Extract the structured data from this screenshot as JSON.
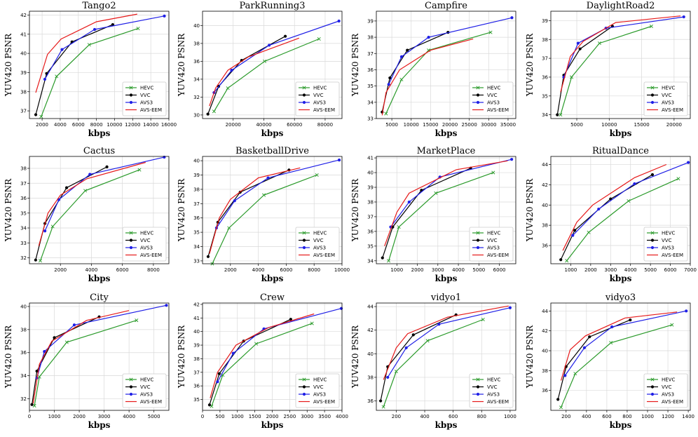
{
  "colors": {
    "HEVC": "#2a9a2a",
    "VVC": "#000000",
    "AVS3": "#1f1fe6",
    "AVS-EEM": "#e61919"
  },
  "legend_names": [
    "HEVC",
    "VVC",
    "AVS3",
    "AVS-EEM"
  ],
  "chart_data": [
    {
      "type": "line",
      "title": "Tango2",
      "xlabel": "kbps",
      "ylabel": "YUV420 PSNR",
      "xlim": [
        600,
        16000
      ],
      "ylim": [
        36.6,
        42.2
      ],
      "xticks": [
        2000,
        4000,
        6000,
        8000,
        10000,
        12000,
        14000,
        16000
      ],
      "yticks": [
        37,
        38,
        39,
        40,
        41,
        42
      ],
      "series": [
        {
          "name": "HEVC",
          "x": [
            1900,
            3600,
            7200,
            12600
          ],
          "y": [
            36.7,
            38.8,
            40.45,
            41.3
          ]
        },
        {
          "name": "VVC",
          "x": [
            1300,
            2500,
            5300,
            9800
          ],
          "y": [
            36.8,
            38.95,
            40.6,
            41.5
          ]
        },
        {
          "name": "AVS3",
          "x": [
            2300,
            4200,
            7800,
            15500
          ],
          "y": [
            38.65,
            40.2,
            41.25,
            41.95
          ]
        },
        {
          "name": "AVS-EEM",
          "x": [
            1300,
            2600,
            4100,
            8000,
            12500
          ],
          "y": [
            37.95,
            39.95,
            40.75,
            41.65,
            42.05
          ]
        }
      ]
    },
    {
      "type": "line",
      "title": "ParkRunning3",
      "xlabel": "kbps",
      "ylabel": "YUV420 PSNR",
      "xlim": [
        0,
        91000
      ],
      "ylim": [
        29.6,
        41.6
      ],
      "xticks": [
        20000,
        40000,
        60000,
        80000
      ],
      "yticks": [
        30,
        32,
        34,
        36,
        38,
        40
      ],
      "series": [
        {
          "name": "HEVC",
          "x": [
            7500,
            16500,
            40500,
            76000
          ],
          "y": [
            30.4,
            33,
            36,
            38.5
          ]
        },
        {
          "name": "VVC",
          "x": [
            3500,
            10500,
            25500,
            54000
          ],
          "y": [
            30.1,
            33.2,
            36.1,
            38.8
          ]
        },
        {
          "name": "AVS3",
          "x": [
            7500,
            19000,
            43500,
            89000
          ],
          "y": [
            32.5,
            35,
            37.8,
            40.5
          ]
        },
        {
          "name": "AVS-EEM",
          "x": [
            4500,
            8500,
            16500,
            30000,
            63000
          ],
          "y": [
            31,
            33,
            35,
            36.5,
            38.6
          ]
        }
      ]
    },
    {
      "type": "line",
      "title": "Campfire",
      "xlabel": "kbps",
      "ylabel": "YUV420 PSNR",
      "xlim": [
        1000,
        37000
      ],
      "ylim": [
        33.0,
        39.6
      ],
      "xticks": [
        5000,
        10000,
        15000,
        20000,
        25000,
        30000,
        35000
      ],
      "yticks": [
        33,
        34,
        35,
        36,
        37,
        38,
        39
      ],
      "series": [
        {
          "name": "HEVC",
          "x": [
            3500,
            7500,
            14500,
            30500
          ],
          "y": [
            33.3,
            35.4,
            37.2,
            38.3
          ]
        },
        {
          "name": "VVC",
          "x": [
            2500,
            4500,
            9000,
            19500
          ],
          "y": [
            33.4,
            35.5,
            37.2,
            38.3
          ]
        },
        {
          "name": "AVS3",
          "x": [
            4200,
            7500,
            14500,
            36000
          ],
          "y": [
            35.1,
            36.8,
            38.0,
            39.2
          ]
        },
        {
          "name": "AVS-EEM",
          "x": [
            2500,
            3500,
            7000,
            15000,
            26000
          ],
          "y": [
            33.2,
            34.6,
            36.0,
            37.2,
            37.9
          ]
        }
      ]
    },
    {
      "type": "line",
      "title": "DaylightRoad2",
      "xlabel": "kbps",
      "ylabel": "YUV420 PSNR",
      "xlim": [
        1000,
        22500
      ],
      "ylim": [
        33.8,
        39.5
      ],
      "xticks": [
        5000,
        10000,
        15000,
        20000
      ],
      "yticks": [
        34,
        35,
        36,
        37,
        38,
        39
      ],
      "series": [
        {
          "name": "HEVC",
          "x": [
            2500,
            4200,
            8500,
            16500
          ],
          "y": [
            34.0,
            36.0,
            37.8,
            38.7
          ]
        },
        {
          "name": "VVC",
          "x": [
            2000,
            3000,
            5500,
            10500
          ],
          "y": [
            34.0,
            36.1,
            37.5,
            38.7
          ]
        },
        {
          "name": "AVS3",
          "x": [
            3000,
            5200,
            9500,
            21500
          ],
          "y": [
            36.0,
            37.8,
            38.6,
            39.2
          ]
        },
        {
          "name": "AVS-EEM",
          "x": [
            2500,
            4000,
            6000,
            11000,
            21000
          ],
          "y": [
            35.2,
            37.1,
            37.9,
            38.9,
            39.25
          ]
        }
      ]
    },
    {
      "type": "line",
      "title": "Cactus",
      "xlabel": "kbps",
      "ylabel": "YUV420 PSNR",
      "xlim": [
        0,
        9000
      ],
      "ylim": [
        31.6,
        38.8
      ],
      "xticks": [
        2000,
        4000,
        6000,
        8000
      ],
      "yticks": [
        32,
        33,
        34,
        35,
        36,
        37,
        38
      ],
      "series": [
        {
          "name": "HEVC",
          "x": [
            700,
            1500,
            3600,
            7100
          ],
          "y": [
            31.8,
            34.1,
            36.5,
            37.9
          ]
        },
        {
          "name": "VVC",
          "x": [
            400,
            1000,
            2400,
            5000
          ],
          "y": [
            31.85,
            34.3,
            36.7,
            38.1
          ]
        },
        {
          "name": "AVS3",
          "x": [
            1000,
            1900,
            3900,
            8700
          ],
          "y": [
            33.8,
            35.9,
            37.6,
            38.75
          ]
        },
        {
          "name": "AVS-EEM",
          "x": [
            600,
            1200,
            2000,
            3700,
            7500
          ],
          "y": [
            32.8,
            35,
            36.2,
            37.3,
            38.4
          ]
        }
      ]
    },
    {
      "type": "line",
      "title": "BasketballDrive",
      "xlabel": "kbps",
      "ylabel": "YUV420 PSNR",
      "xlim": [
        0,
        10000
      ],
      "ylim": [
        32.8,
        40.3
      ],
      "xticks": [
        2000,
        4000,
        6000,
        8000,
        10000
      ],
      "yticks": [
        33,
        34,
        35,
        36,
        37,
        38,
        39,
        40
      ],
      "series": [
        {
          "name": "HEVC",
          "x": [
            700,
            1900,
            4400,
            8200
          ],
          "y": [
            32.8,
            35.3,
            37.6,
            39.0
          ]
        },
        {
          "name": "VVC",
          "x": [
            400,
            1100,
            2700,
            6200
          ],
          "y": [
            33.3,
            35.7,
            37.8,
            39.35
          ]
        },
        {
          "name": "AVS3",
          "x": [
            1000,
            2300,
            4700,
            9800
          ],
          "y": [
            35.3,
            37.2,
            38.8,
            40.05
          ]
        },
        {
          "name": "AVS-EEM",
          "x": [
            500,
            1200,
            2000,
            4000,
            7000
          ],
          "y": [
            33.5,
            36,
            37.3,
            38.8,
            39.5
          ]
        }
      ]
    },
    {
      "type": "line",
      "title": "MarketPlace",
      "xlabel": "kbps",
      "ylabel": "YUV420 PSNR",
      "xlim": [
        0,
        6800
      ],
      "ylim": [
        33.8,
        41.1
      ],
      "xticks": [
        1000,
        2000,
        3000,
        4000,
        5000,
        6000
      ],
      "yticks": [
        34,
        35,
        36,
        37,
        38,
        39,
        40,
        41
      ],
      "series": [
        {
          "name": "HEVC",
          "x": [
            600,
            1100,
            2900,
            5700
          ],
          "y": [
            34.0,
            36.3,
            38.6,
            40.0
          ]
        },
        {
          "name": "VVC",
          "x": [
            300,
            800,
            2200,
            4600
          ],
          "y": [
            34.2,
            36.3,
            38.8,
            40.3
          ]
        },
        {
          "name": "AVS3",
          "x": [
            700,
            1600,
            3100,
            6600
          ],
          "y": [
            36.3,
            38.0,
            39.7,
            40.9
          ]
        },
        {
          "name": "AVS-EEM",
          "x": [
            400,
            1000,
            1600,
            3900,
            6400
          ],
          "y": [
            35.0,
            37.3,
            38.6,
            40.2,
            40.8
          ]
        }
      ]
    },
    {
      "type": "line",
      "title": "RitualDance",
      "xlabel": "kbps",
      "ylabel": "YUV420 PSNR",
      "xlim": [
        0,
        7000
      ],
      "ylim": [
        34.2,
        44.8
      ],
      "xticks": [
        1000,
        2000,
        3000,
        4000,
        5000,
        6000,
        7000
      ],
      "yticks": [
        36,
        38,
        40,
        42,
        44
      ],
      "series": [
        {
          "name": "HEVC",
          "x": [
            800,
            1900,
            3900,
            6400
          ],
          "y": [
            34.5,
            37.3,
            40.4,
            42.6
          ]
        },
        {
          "name": "VVC",
          "x": [
            500,
            1200,
            3000,
            5100
          ],
          "y": [
            34.6,
            37.5,
            40.6,
            43.0
          ]
        },
        {
          "name": "AVS3",
          "x": [
            1100,
            2400,
            4200,
            6900
          ],
          "y": [
            37.0,
            39.6,
            42.1,
            44.2
          ]
        },
        {
          "name": "AVS-EEM",
          "x": [
            600,
            1300,
            2100,
            4200,
            5800
          ],
          "y": [
            35.5,
            38.3,
            40.0,
            42.7,
            44.0
          ]
        }
      ]
    },
    {
      "type": "line",
      "title": "City",
      "xlabel": "kbps",
      "ylabel": "YUV420 PSNR",
      "xlim": [
        0,
        5600
      ],
      "ylim": [
        31.0,
        40.3
      ],
      "xticks": [
        0,
        1000,
        2000,
        3000,
        4000,
        5000
      ],
      "yticks": [
        32,
        34,
        36,
        38,
        40
      ],
      "series": [
        {
          "name": "HEVC",
          "x": [
            200,
            400,
            1500,
            4300
          ],
          "y": [
            31.4,
            33.9,
            36.9,
            38.8
          ]
        },
        {
          "name": "VVC",
          "x": [
            100,
            300,
            1000,
            2800
          ],
          "y": [
            31.5,
            34.4,
            37.3,
            39.1
          ]
        },
        {
          "name": "AVS3",
          "x": [
            300,
            600,
            1800,
            5500
          ],
          "y": [
            33.8,
            36.1,
            38.4,
            40.1
          ]
        },
        {
          "name": "AVS-EEM",
          "x": [
            150,
            400,
            900,
            2300,
            4000
          ],
          "y": [
            31.6,
            35.0,
            37.0,
            38.8,
            39.65
          ]
        }
      ]
    },
    {
      "type": "line",
      "title": "Crew",
      "xlabel": "kbps",
      "ylabel": "YUV420 PSNR",
      "xlim": [
        0,
        4000
      ],
      "ylim": [
        34.2,
        42.1
      ],
      "xticks": [
        0,
        500,
        1000,
        1500,
        2000,
        2500,
        3000,
        3500,
        4000
      ],
      "yticks": [
        35,
        36,
        37,
        38,
        39,
        40,
        41,
        42
      ],
      "series": [
        {
          "name": "HEVC",
          "x": [
            260,
            580,
            1540,
            3140
          ],
          "y": [
            34.5,
            36.8,
            39.1,
            40.6
          ]
        },
        {
          "name": "VVC",
          "x": [
            200,
            480,
            1180,
            2530
          ],
          "y": [
            34.6,
            36.9,
            39.3,
            40.9
          ]
        },
        {
          "name": "AVS3",
          "x": [
            430,
            880,
            1760,
            3980
          ],
          "y": [
            36.3,
            38.4,
            40.2,
            41.7
          ]
        },
        {
          "name": "AVS-EEM",
          "x": [
            220,
            430,
            960,
            1900,
            3200
          ],
          "y": [
            35.1,
            37.0,
            39.0,
            40.3,
            41.3
          ]
        }
      ]
    },
    {
      "type": "line",
      "title": "vidyo1",
      "xlabel": "kbps",
      "ylabel": "YUV420 PSNR",
      "xlim": [
        60,
        1040
      ],
      "ylim": [
        35.2,
        44.3
      ],
      "xticks": [
        200,
        400,
        600,
        800,
        1000
      ],
      "yticks": [
        36,
        38,
        40,
        42,
        44
      ],
      "series": [
        {
          "name": "HEVC",
          "x": [
            110,
            200,
            420,
            810
          ],
          "y": [
            35.5,
            38.5,
            41.1,
            42.9
          ]
        },
        {
          "name": "VVC",
          "x": [
            90,
            140,
            320,
            620
          ],
          "y": [
            36.0,
            38.9,
            41.6,
            43.3
          ]
        },
        {
          "name": "AVS3",
          "x": [
            140,
            270,
            500,
            1000
          ],
          "y": [
            38.0,
            40.5,
            42.5,
            43.9
          ]
        },
        {
          "name": "AVS-EEM",
          "x": [
            110,
            200,
            280,
            560,
            990
          ],
          "y": [
            37.8,
            40.5,
            41.7,
            43.1,
            44.05
          ]
        }
      ]
    },
    {
      "type": "line",
      "title": "vidyo3",
      "xlabel": "kbps",
      "ylabel": "YUV420 PSNR",
      "xlim": [
        50,
        1420
      ],
      "ylim": [
        34.0,
        44.8
      ],
      "xticks": [
        200,
        400,
        600,
        800,
        1000,
        1200,
        1400
      ],
      "yticks": [
        36,
        38,
        40,
        42,
        44
      ],
      "series": [
        {
          "name": "HEVC",
          "x": [
            150,
            290,
            640,
            1240
          ],
          "y": [
            34.3,
            37.7,
            40.8,
            42.6
          ]
        },
        {
          "name": "VVC",
          "x": [
            120,
            200,
            430,
            830
          ],
          "y": [
            35.1,
            38.4,
            41.4,
            43.1
          ]
        },
        {
          "name": "AVS3",
          "x": [
            190,
            380,
            650,
            1380
          ],
          "y": [
            37.5,
            40.3,
            42.4,
            44.0
          ]
        },
        {
          "name": "AVS-EEM",
          "x": [
            150,
            240,
            390,
            780,
            1290
          ],
          "y": [
            37.0,
            40.1,
            41.5,
            43.3,
            43.9
          ]
        }
      ]
    }
  ]
}
